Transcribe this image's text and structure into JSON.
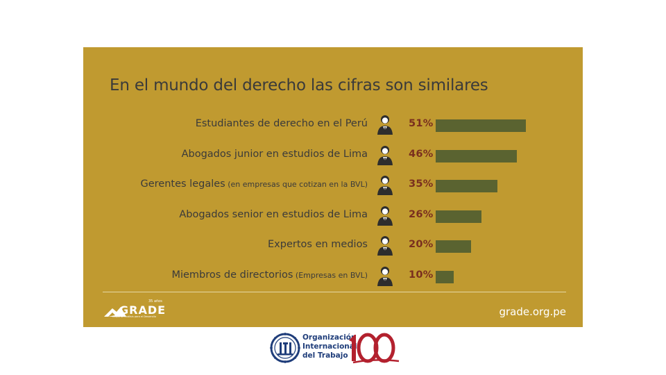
{
  "chart_data": {
    "type": "bar",
    "orientation": "horizontal",
    "title": "En el mundo del derecho las cifras son similares",
    "categories": [
      {
        "label": "Estudiantes de derecho en el Perú",
        "note": ""
      },
      {
        "label": "Abogados junior en estudios de Lima",
        "note": ""
      },
      {
        "label": "Gerentes legales",
        "note": "(en empresas que cotizan en la BVL)"
      },
      {
        "label": "Abogados senior en estudios de Lima",
        "note": ""
      },
      {
        "label": "Expertos en medios",
        "note": ""
      },
      {
        "label": "Miembros de directorios",
        "note": "(Empresas en BVL)"
      }
    ],
    "values": [
      51,
      46,
      35,
      26,
      20,
      10
    ],
    "value_labels": [
      "51%",
      "46%",
      "35%",
      "26%",
      "20%",
      "10%"
    ],
    "unit": "%",
    "xlim": [
      0,
      100
    ],
    "bar_color": "#5a6330"
  },
  "footer": {
    "org_years": "35 años",
    "org_name": "GRADE",
    "org_tagline": "Grupo de Análisis para el Desarrollo",
    "website": "grade.org.pe"
  },
  "partners": {
    "oit_line1": "Organización",
    "oit_line2": "Internacional",
    "oit_line3": "del Trabajo",
    "centenary": "100"
  },
  "colors": {
    "panel": "#c09a30",
    "text": "#3a3a3a",
    "percent": "#7a2f1e",
    "oit_blue": "#1f3d7a",
    "centenary_red": "#b3212e"
  }
}
